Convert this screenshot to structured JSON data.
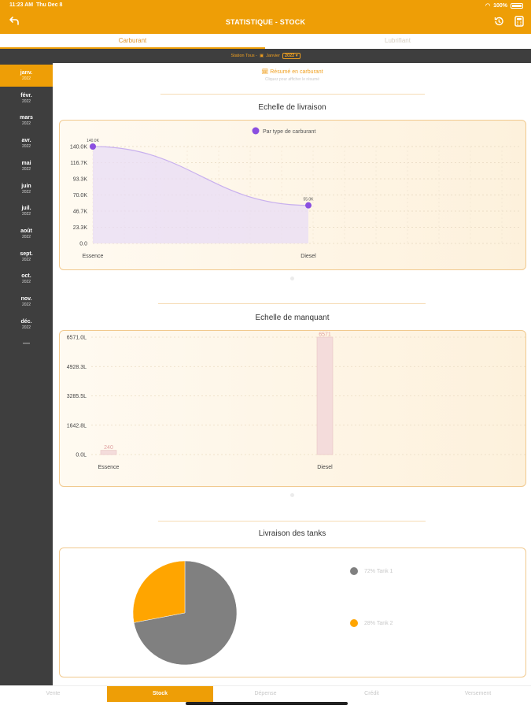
{
  "status_bar": {
    "time": "11:23 AM",
    "date": "Thu Dec 8",
    "battery": "100%"
  },
  "header": {
    "title": "STATISTIQUE - STOCK",
    "back_icon": "back-arrow-icon",
    "history_icon": "history-icon",
    "calculator_icon": "calculator-icon"
  },
  "tabs": [
    {
      "label": "Carburant"
    },
    {
      "label": "Lubrifiant"
    }
  ],
  "filter": {
    "station": "Station Tous -",
    "month": "Janvier",
    "year": "2022"
  },
  "months": [
    {
      "label": "janv.",
      "year": "2022"
    },
    {
      "label": "févr.",
      "year": "2022"
    },
    {
      "label": "mars",
      "year": "2022"
    },
    {
      "label": "avr.",
      "year": "2022"
    },
    {
      "label": "mai",
      "year": "2022"
    },
    {
      "label": "juin",
      "year": "2022"
    },
    {
      "label": "juil.",
      "year": "2022"
    },
    {
      "label": "août",
      "year": "2022"
    },
    {
      "label": "sept.",
      "year": "2022"
    },
    {
      "label": "oct.",
      "year": "2022"
    },
    {
      "label": "nov.",
      "year": "2022"
    },
    {
      "label": "déc.",
      "year": "2022"
    }
  ],
  "sidebar_more": "—",
  "resume": {
    "label": "Résumé en carburant",
    "sub": "Cliquez pour afficher le résumé"
  },
  "sections": {
    "livraison_title": "Echelle de livraison",
    "manquant_title": "Echelle de manquant",
    "tanks_title": "Livraison des tanks"
  },
  "chart_data": [
    {
      "type": "area",
      "legend": [
        "Par type de carburant"
      ],
      "categories": [
        "Essence",
        "Diesel"
      ],
      "series": [
        {
          "name": "Par type de carburant",
          "values": [
            140.0,
            55.0
          ],
          "labels": [
            "140.0K",
            "55.0K"
          ],
          "color": "#8a4fe0"
        }
      ],
      "yticks": [
        "0.0",
        "23.3K",
        "46.7K",
        "70.0K",
        "93.3K",
        "116.7K",
        "140.0K"
      ],
      "ylim": [
        0,
        140
      ]
    },
    {
      "type": "bar",
      "categories": [
        "Essence",
        "Diesel"
      ],
      "values": [
        240,
        6571
      ],
      "labels": [
        "240",
        "6571"
      ],
      "yticks": [
        "0.0L",
        "1642.8L",
        "3285.5L",
        "4928.3L",
        "6571.0L"
      ],
      "ylim": [
        0,
        6571
      ],
      "color": "#f4dcdb"
    },
    {
      "type": "pie",
      "slices": [
        {
          "label": "72% Tank 1",
          "value": 72,
          "color": "#808080"
        },
        {
          "label": "28% Tank 2",
          "value": 28,
          "color": "#ffa500"
        }
      ]
    }
  ],
  "bottom_nav": [
    {
      "label": "Vente"
    },
    {
      "label": "Stock"
    },
    {
      "label": "Dépense"
    },
    {
      "label": "Crédit"
    },
    {
      "label": "Versement"
    }
  ],
  "colors": {
    "accent": "#ee9e06",
    "sidebar": "#3e3e3e"
  }
}
